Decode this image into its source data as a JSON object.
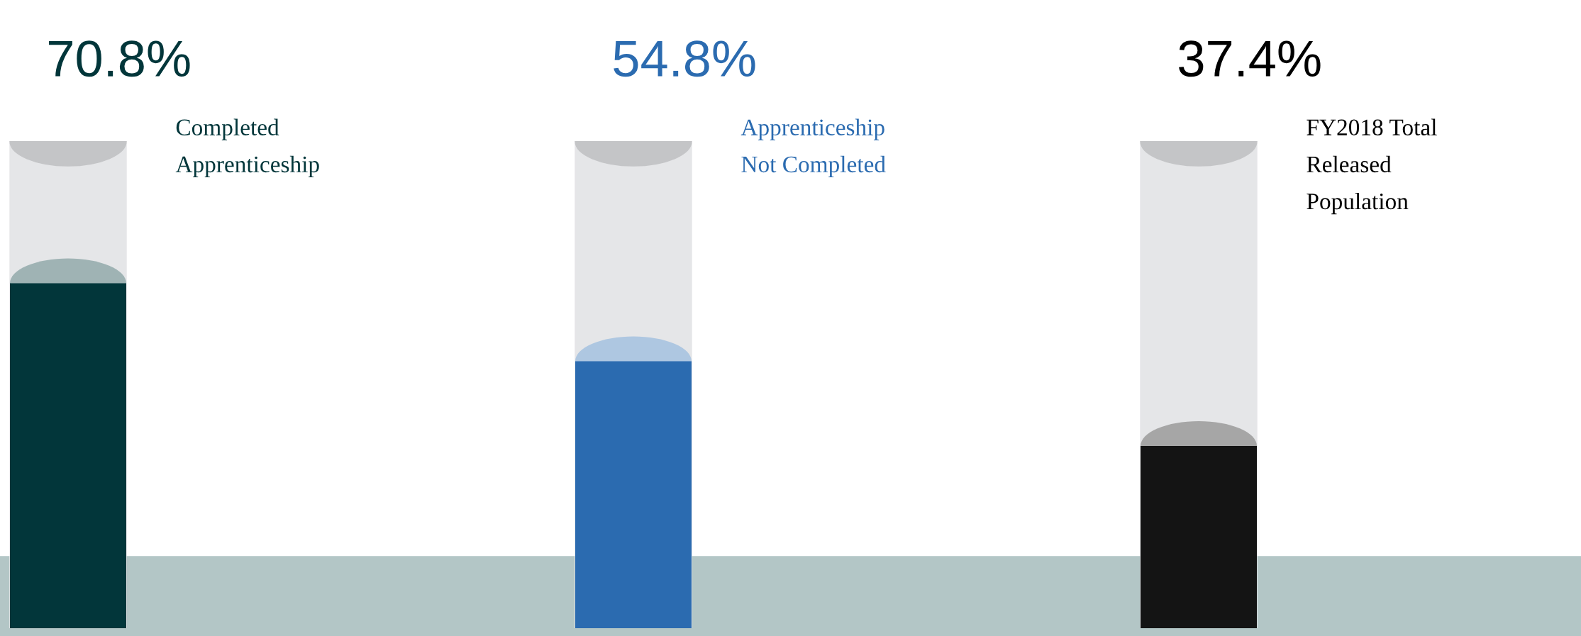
{
  "chart_data": {
    "type": "bar",
    "categories": [
      "Completed\nApprenticeship",
      "Apprenticeship\nNot Completed",
      "FY2018 Total\nReleased\nPopulation"
    ],
    "values": [
      70.8,
      54.8,
      37.4
    ],
    "value_labels": [
      "70.8%",
      "54.8%",
      "37.4%"
    ],
    "colors": [
      "#02363a",
      "#2b6bb0",
      "#141414"
    ],
    "ylim": [
      0,
      100
    ]
  }
}
